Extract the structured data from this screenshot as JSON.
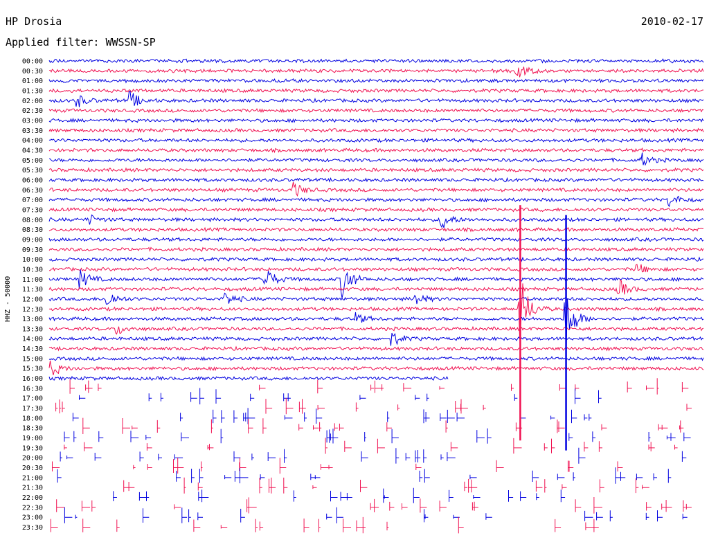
{
  "header": {
    "station": "HP Drosia",
    "date": "2010-02-17",
    "filter": "Applied filter: WWSSN-SP"
  },
  "chart_data": {
    "type": "helicorder",
    "title": "HP Drosia",
    "subtitle": "Applied filter: WWSSN-SP",
    "ylabel": "HHZ - 50000",
    "colors": [
      "#0000e0",
      "#f01050"
    ],
    "row_labels": [
      "00:00",
      "00:30",
      "01:00",
      "01:30",
      "02:00",
      "02:30",
      "03:00",
      "03:30",
      "04:00",
      "04:30",
      "05:00",
      "05:30",
      "06:00",
      "06:30",
      "07:00",
      "07:30",
      "08:00",
      "08:30",
      "09:00",
      "09:30",
      "10:00",
      "10:30",
      "11:00",
      "11:30",
      "12:00",
      "12:30",
      "13:00",
      "13:30",
      "14:00",
      "14:30",
      "15:00",
      "15:30",
      "16:00",
      "16:30",
      "17:00",
      "17:30",
      "18:00",
      "18:30",
      "19:00",
      "19:30",
      "20:00",
      "20:30",
      "21:00",
      "21:30",
      "22:00",
      "22:30",
      "23:00",
      "23:30"
    ],
    "continuous_rows": 33,
    "events": [
      {
        "row": 1,
        "x": 0.715,
        "amp": 3
      },
      {
        "row": 4,
        "x": 0.125,
        "amp": 2.5
      },
      {
        "row": 4,
        "x": 0.045,
        "amp": 1.6
      },
      {
        "row": 10,
        "x": 0.905,
        "amp": 2
      },
      {
        "row": 13,
        "x": 0.375,
        "amp": 2
      },
      {
        "row": 14,
        "x": 0.95,
        "amp": 1.8
      },
      {
        "row": 16,
        "x": 0.06,
        "amp": 1.5
      },
      {
        "row": 16,
        "x": 0.6,
        "amp": 3
      },
      {
        "row": 21,
        "x": 0.9,
        "amp": 1.5
      },
      {
        "row": 22,
        "x": 0.05,
        "amp": 2.5
      },
      {
        "row": 22,
        "x": 0.33,
        "amp": 4
      },
      {
        "row": 22,
        "x": 0.45,
        "amp": 5
      },
      {
        "row": 23,
        "x": 0.87,
        "amp": 3
      },
      {
        "row": 24,
        "x": 0.09,
        "amp": 2.5
      },
      {
        "row": 24,
        "x": 0.27,
        "amp": 2
      },
      {
        "row": 24,
        "x": 0.56,
        "amp": 1.8
      },
      {
        "row": 25,
        "x": 0.72,
        "amp": 10
      },
      {
        "row": 26,
        "x": 0.47,
        "amp": 1.5
      },
      {
        "row": 26,
        "x": 0.79,
        "amp": 9
      },
      {
        "row": 27,
        "x": 0.105,
        "amp": 1.5
      },
      {
        "row": 28,
        "x": 0.525,
        "amp": 2
      },
      {
        "row": 31,
        "x": 0.005,
        "amp": 2
      }
    ]
  }
}
